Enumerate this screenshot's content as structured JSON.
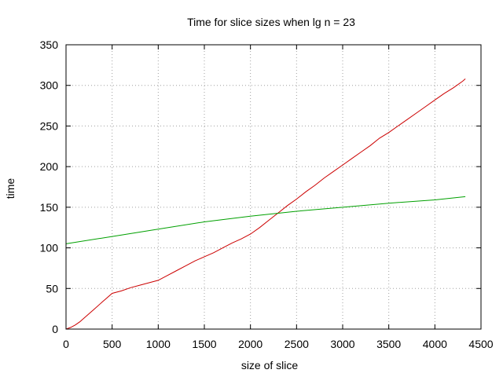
{
  "chart_data": {
    "type": "line",
    "title": "Time for slice sizes when lg n = 23",
    "xlabel": "size of slice",
    "ylabel": "time",
    "xlim": [
      0,
      4500
    ],
    "ylim": [
      0,
      350
    ],
    "xticks": [
      0,
      500,
      1000,
      1500,
      2000,
      2500,
      3000,
      3500,
      4000,
      4500
    ],
    "yticks": [
      0,
      50,
      100,
      150,
      200,
      250,
      300,
      350
    ],
    "grid": true,
    "series": [
      {
        "color": "#cc0000",
        "x": [
          0,
          50,
          100,
          150,
          200,
          300,
          400,
          500,
          600,
          700,
          800,
          900,
          1000,
          1100,
          1200,
          1300,
          1400,
          1500,
          1600,
          1700,
          1800,
          1900,
          2000,
          2100,
          2200,
          2300,
          2400,
          2500,
          2600,
          2700,
          2800,
          2900,
          3000,
          3100,
          3200,
          3300,
          3400,
          3500,
          3600,
          3700,
          3800,
          3900,
          4000,
          4100,
          4200,
          4300,
          4330
        ],
        "y": [
          0,
          2,
          5,
          9,
          14,
          24,
          34,
          44,
          47,
          51,
          54,
          57,
          60,
          66,
          72,
          78,
          84,
          89,
          94,
          100,
          106,
          111,
          117,
          125,
          134,
          143,
          152,
          160,
          169,
          177,
          186,
          194,
          202,
          210,
          218,
          226,
          235,
          242,
          250,
          258,
          266,
          274,
          282,
          290,
          297,
          305,
          308
        ]
      },
      {
        "color": "#00a000",
        "x": [
          0,
          500,
          1000,
          1500,
          2000,
          2500,
          3000,
          3500,
          4000,
          4330
        ],
        "y": [
          105,
          114,
          123,
          132,
          139,
          145,
          150,
          155,
          159,
          163
        ]
      }
    ]
  }
}
